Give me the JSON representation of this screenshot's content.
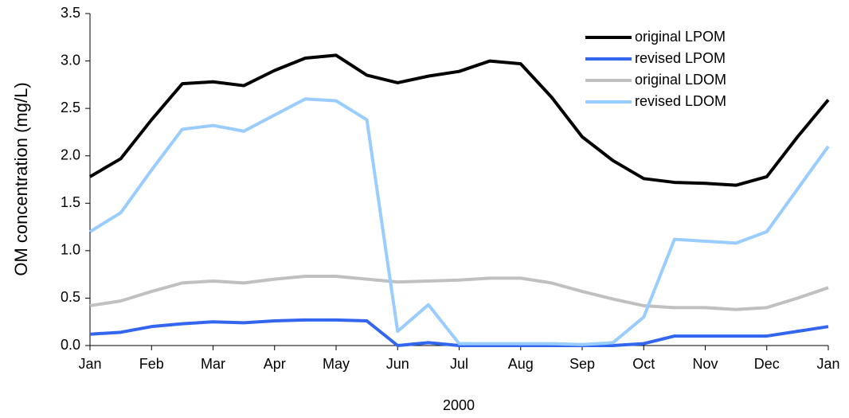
{
  "chart_data": {
    "type": "line",
    "x_label": "2000",
    "y_label": "OM concentration (mg/L)",
    "categories": [
      "Jan",
      null,
      "Feb",
      null,
      "Mar",
      null,
      "Apr",
      null,
      "May",
      null,
      "Jun",
      null,
      "Jul",
      null,
      "Aug",
      null,
      "Sep",
      null,
      "Oct",
      null,
      "Nov",
      null,
      "Dec",
      null,
      "Jan"
    ],
    "ylim": [
      0,
      3.5
    ],
    "yticks": [
      {
        "value": 0,
        "label": "0.0"
      },
      {
        "value": 0.5,
        "label": "0.5"
      },
      {
        "value": 1,
        "label": "1.0"
      },
      {
        "value": 1.5,
        "label": "1.5"
      },
      {
        "value": 2,
        "label": "2.0"
      },
      {
        "value": 2.5,
        "label": "2.5"
      },
      {
        "value": 3,
        "label": "3.0"
      },
      {
        "value": 3.5,
        "label": "3.5"
      }
    ],
    "grid": false,
    "legend": "top-right",
    "series": [
      {
        "name": "original LPOM",
        "color": "#000000",
        "values": [
          1.78,
          1.97,
          2.38,
          2.76,
          2.78,
          2.74,
          2.9,
          3.03,
          3.06,
          2.85,
          2.77,
          2.84,
          2.89,
          3.0,
          2.97,
          2.62,
          2.2,
          1.95,
          1.76,
          1.72,
          1.71,
          1.69,
          1.78,
          2.2,
          2.59
        ]
      },
      {
        "name": "revised LPOM",
        "color": "#3366ee",
        "values": [
          0.12,
          0.14,
          0.2,
          0.23,
          0.25,
          0.24,
          0.26,
          0.27,
          0.27,
          0.26,
          0.0,
          0.03,
          0.0,
          0.0,
          0.0,
          0.0,
          0.0,
          0.0,
          0.02,
          0.1,
          0.1,
          0.1,
          0.1,
          0.15,
          0.2
        ]
      },
      {
        "name": "original LDOM",
        "color": "#c0c0c0",
        "values": [
          0.42,
          0.47,
          0.57,
          0.66,
          0.68,
          0.66,
          0.7,
          0.73,
          0.73,
          0.7,
          0.67,
          0.68,
          0.69,
          0.71,
          0.71,
          0.66,
          0.57,
          0.49,
          0.42,
          0.4,
          0.4,
          0.38,
          0.4,
          0.5,
          0.61
        ]
      },
      {
        "name": "revised LDOM",
        "color": "#99ccff",
        "values": [
          1.2,
          1.4,
          1.85,
          2.28,
          2.32,
          2.26,
          2.43,
          2.6,
          2.58,
          2.38,
          0.15,
          0.43,
          0.02,
          0.02,
          0.02,
          0.02,
          0.01,
          0.03,
          0.3,
          1.12,
          1.1,
          1.08,
          1.2,
          1.65,
          2.1
        ]
      }
    ]
  }
}
